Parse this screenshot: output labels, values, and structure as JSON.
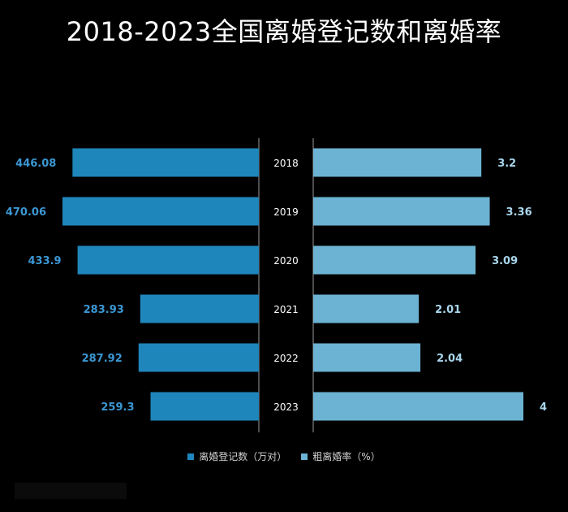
{
  "title": "2018-2023全国离婚登记数和离婚率",
  "chart_data": {
    "type": "bar",
    "orientation": "horizontal-butterfly",
    "categories": [
      "2018",
      "2019",
      "2020",
      "2021",
      "2022",
      "2023"
    ],
    "series": [
      {
        "name": "离婚登记数（万对）",
        "side": "left",
        "color": "#1f86bb",
        "label_color": "#3b97d3",
        "values": [
          446.08,
          470.06,
          433.9,
          283.93,
          287.92,
          259.3
        ],
        "labels": [
          "446.08",
          "470.06",
          "433.9",
          "283.93",
          "287.92",
          "259.3"
        ]
      },
      {
        "name": "粗离婚率（%）",
        "side": "right",
        "color": "#6cb3d3",
        "label_color": "#a9d6ec",
        "values": [
          3.2,
          3.36,
          3.09,
          2.01,
          2.04,
          4
        ],
        "labels": [
          "3.2",
          "3.36",
          "3.09",
          "2.01",
          "2.04",
          "4"
        ]
      }
    ],
    "legend_position": "bottom-center",
    "grid": false
  }
}
